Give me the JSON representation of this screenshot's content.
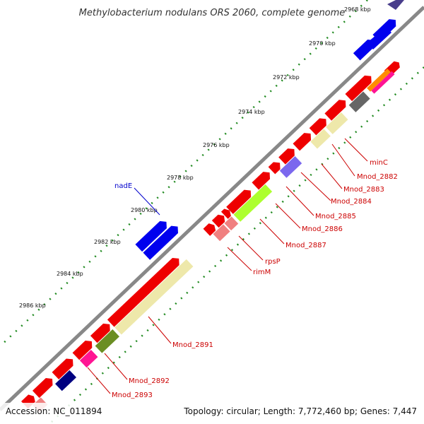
{
  "title": "Methylobacterium nodulans ORS 2060, complete genome",
  "footer": {
    "accession": "Accession: NC_011894",
    "summary": "Topology: circular; Length: 7,772,460 bp; Genes: 7,447"
  },
  "ticks": [
    {
      "label": "2968 kbp"
    },
    {
      "label": "2970 kbp"
    },
    {
      "label": "2972 kbp"
    },
    {
      "label": "2974 kbp"
    },
    {
      "label": "2976 kbp"
    },
    {
      "label": "2978 kbp"
    },
    {
      "label": "2980 kbp"
    },
    {
      "label": "2982 kbp"
    },
    {
      "label": "2984 kbp"
    },
    {
      "label": "2986 kbp"
    }
  ],
  "labels": [
    {
      "text": "nadE",
      "color": "#0000cc"
    },
    {
      "text": "minC",
      "color": "#cc0000"
    },
    {
      "text": "Mnod_2882",
      "color": "#cc0000"
    },
    {
      "text": "Mnod_2883",
      "color": "#cc0000"
    },
    {
      "text": "Mnod_2884",
      "color": "#cc0000"
    },
    {
      "text": "Mnod_2885",
      "color": "#cc0000"
    },
    {
      "text": "Mnod_2886",
      "color": "#cc0000"
    },
    {
      "text": "Mnod_2887",
      "color": "#cc0000"
    },
    {
      "text": "rpsP",
      "color": "#cc0000"
    },
    {
      "text": "rimM",
      "color": "#cc0000"
    },
    {
      "text": "Mnod_2891",
      "color": "#cc0000"
    },
    {
      "text": "Mnod_2892",
      "color": "#cc0000"
    },
    {
      "text": "Mnod_2893",
      "color": "#cc0000"
    }
  ],
  "colors": {
    "cds_red": "#ee0000",
    "nade_blue": "#0000ee",
    "backbone": "#888888",
    "dots_green": "#228b22",
    "rrna_khaki": "#eee8aa",
    "navy": "#000080",
    "slate": "#7b68ee",
    "olive": "#6b8e23",
    "lime": "#adff2f",
    "salmon": "#f08080",
    "pink": "#ff1493",
    "orange": "#ff8c00",
    "gray": "#666666"
  }
}
